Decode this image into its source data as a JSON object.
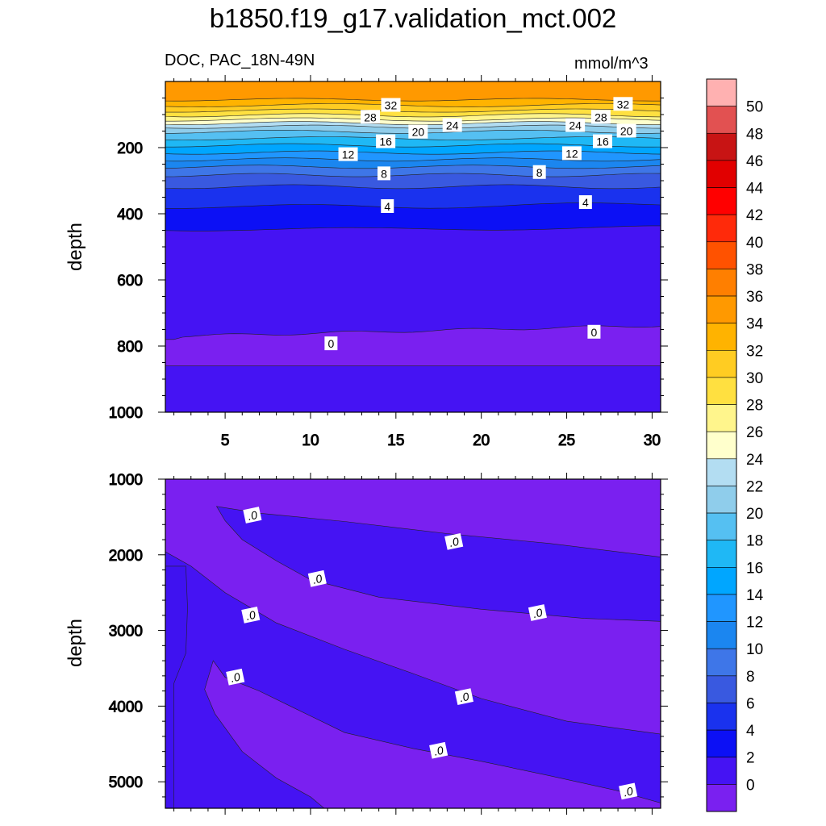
{
  "title": "b1850.f19_g17.validation_mct.002",
  "subtitle_left": "DOC, PAC_18N-49N",
  "subtitle_right": "mmol/m^3",
  "chart_data": [
    {
      "type": "contour",
      "panel": "upper",
      "xlabel": "",
      "ylabel": "depth",
      "xlim": [
        1.5,
        30.5
      ],
      "ylim": [
        1000,
        0
      ],
      "x_ticks": [
        5,
        10,
        15,
        20,
        25,
        30
      ],
      "y_ticks": [
        200,
        400,
        600,
        800,
        1000
      ],
      "contour_labels": [
        {
          "text": "32",
          "x": 14.7,
          "y": 72
        },
        {
          "text": "32",
          "x": 28.3,
          "y": 69
        },
        {
          "text": "28",
          "x": 13.5,
          "y": 108
        },
        {
          "text": "28",
          "x": 27.0,
          "y": 108
        },
        {
          "text": "24",
          "x": 18.3,
          "y": 133
        },
        {
          "text": "24",
          "x": 25.5,
          "y": 133
        },
        {
          "text": "20",
          "x": 16.3,
          "y": 153
        },
        {
          "text": "20",
          "x": 28.5,
          "y": 150
        },
        {
          "text": "16",
          "x": 14.4,
          "y": 182
        },
        {
          "text": "16",
          "x": 27.1,
          "y": 182
        },
        {
          "text": "12",
          "x": 12.2,
          "y": 221
        },
        {
          "text": "12",
          "x": 25.3,
          "y": 218
        },
        {
          "text": "8",
          "x": 14.3,
          "y": 279
        },
        {
          "text": "8",
          "x": 23.4,
          "y": 275
        },
        {
          "text": "4",
          "x": 14.5,
          "y": 378
        },
        {
          "text": "4",
          "x": 26.1,
          "y": 366
        },
        {
          "text": "0",
          "x": 11.2,
          "y": 793
        },
        {
          "text": "0",
          "x": 26.6,
          "y": 758
        }
      ]
    },
    {
      "type": "contour",
      "panel": "lower",
      "xlabel": "",
      "ylabel": "depth",
      "xlim": [
        1.5,
        30.5
      ],
      "ylim": [
        5350,
        1000
      ],
      "y_ticks": [
        1000,
        2000,
        3000,
        4000,
        5000
      ],
      "contour_labels": [
        {
          "text": ".0",
          "x": 6.6,
          "y": 1480
        },
        {
          "text": ".0",
          "x": 18.4,
          "y": 1830
        },
        {
          "text": ".0",
          "x": 10.4,
          "y": 2320
        },
        {
          "text": ".0",
          "x": 23.3,
          "y": 2770
        },
        {
          "text": ".0",
          "x": 6.5,
          "y": 2800
        },
        {
          "text": ".0",
          "x": 5.6,
          "y": 3620
        },
        {
          "text": ".0",
          "x": 19.0,
          "y": 3880
        },
        {
          "text": ".0",
          "x": 17.5,
          "y": 4590
        },
        {
          "text": ".0",
          "x": 28.6,
          "y": 5130
        }
      ]
    }
  ],
  "colorbar": {
    "labels": [
      "50",
      "48",
      "46",
      "44",
      "42",
      "40",
      "38",
      "36",
      "34",
      "32",
      "30",
      "28",
      "26",
      "24",
      "22",
      "20",
      "18",
      "16",
      "14",
      "12",
      "10",
      "8",
      "6",
      "4",
      "2",
      "0"
    ],
    "colors": [
      "#ffb1b1",
      "#e25151",
      "#c81414",
      "#e10000",
      "#ff0000",
      "#ff2a0a",
      "#ff5200",
      "#ff7f00",
      "#ff9900",
      "#ffb300",
      "#ffcc22",
      "#ffe040",
      "#fff58c",
      "#ffffcc",
      "#b3ddf2",
      "#8fcdeb",
      "#55c0f2",
      "#1fb8f5",
      "#00a6ff",
      "#2096ff",
      "#1b86f0",
      "#3e76e8",
      "#3959e0",
      "#1a32ee",
      "#0c10f5",
      "#4513f3",
      "#7a20f0"
    ]
  }
}
